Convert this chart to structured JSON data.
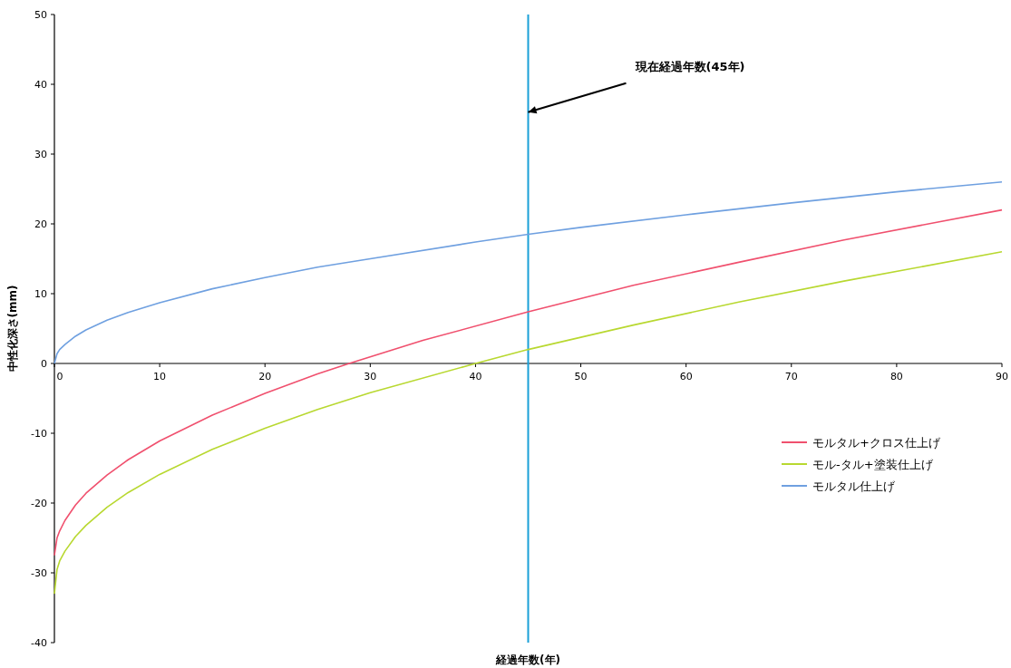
{
  "chart_data": {
    "type": "line",
    "xlabel": "経過年数(年)",
    "ylabel": "中性化深さ(mm)",
    "xlim": [
      0,
      90
    ],
    "ylim": [
      -40,
      50
    ],
    "xticks": [
      0,
      10,
      20,
      30,
      40,
      50,
      60,
      70,
      80,
      90
    ],
    "yticks": [
      -40,
      -30,
      -20,
      -10,
      0,
      10,
      20,
      30,
      40,
      50
    ],
    "legend": "right",
    "series": [
      {
        "name": "モルタル+クロス仕上げ",
        "color": "#f0506e",
        "x": [
          0,
          0.25,
          0.5,
          1,
          2,
          3,
          5,
          7,
          10,
          15,
          20,
          25,
          28,
          35,
          45,
          55,
          65,
          75,
          90
        ],
        "values": [
          -27.5,
          -25,
          -24,
          -22.5,
          -20.3,
          -18.6,
          -16,
          -13.8,
          -11.1,
          -7.4,
          -4.3,
          -1.5,
          0,
          3.3,
          7.4,
          11.2,
          14.5,
          17.7,
          22
        ]
      },
      {
        "name": "モル-タル+塗装仕上げ",
        "color": "#b8d830",
        "x": [
          0,
          0.25,
          0.5,
          1,
          2,
          3,
          5,
          7,
          10,
          15,
          20,
          25,
          30,
          40,
          45,
          55,
          65,
          75,
          90
        ],
        "values": [
          -33,
          -29.5,
          -28.3,
          -26.9,
          -24.8,
          -23.2,
          -20.6,
          -18.5,
          -15.9,
          -12.3,
          -9.3,
          -6.6,
          -4.2,
          0,
          2,
          5.5,
          8.8,
          11.8,
          16
        ]
      },
      {
        "name": "モルタル仕上げ",
        "color": "#6fa0e0",
        "x": [
          0,
          0.25,
          0.5,
          1,
          2,
          3,
          5,
          7,
          10,
          15,
          20,
          25,
          30,
          40,
          45,
          50,
          60,
          70,
          80,
          90
        ],
        "values": [
          0,
          1.4,
          2,
          2.7,
          3.9,
          4.8,
          6.2,
          7.3,
          8.7,
          10.7,
          12.3,
          13.8,
          15,
          17.4,
          18.5,
          19.5,
          21.3,
          23,
          24.6,
          26
        ]
      }
    ],
    "ref_lines": [
      {
        "axis": "x",
        "value": 45,
        "color": "#1aa0d8"
      }
    ],
    "annotations": [
      {
        "text": "現在経過年数(45年)",
        "x": 45,
        "y": 36
      }
    ]
  }
}
